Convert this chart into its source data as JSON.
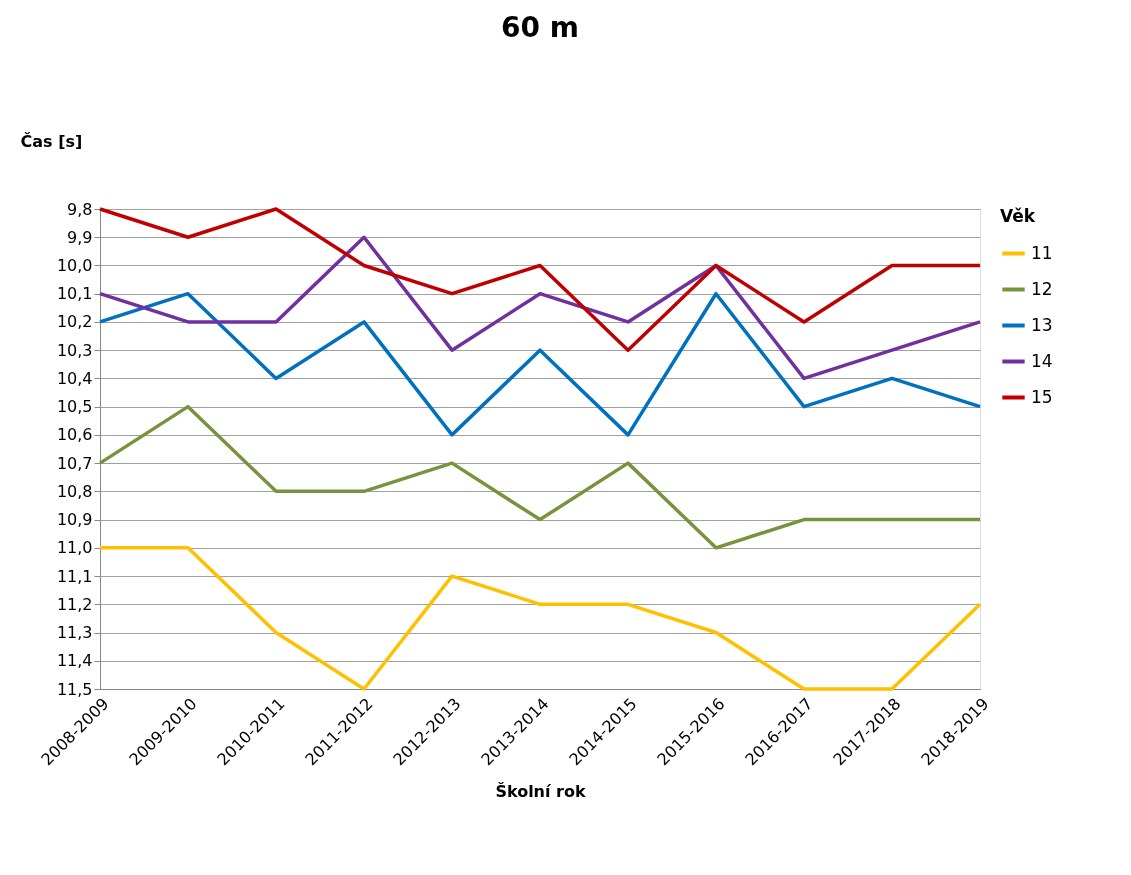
{
  "chart_data": {
    "type": "line",
    "title": "60 m",
    "xlabel": "Školní rok",
    "ylabel": "Čas [s]",
    "legend_title": "Věk",
    "categories": [
      "2008-2009",
      "2009-2010",
      "2010-2011",
      "2011-2012",
      "2012-2013",
      "2013-2014",
      "2014-2015",
      "2015-2016",
      "2016-2017",
      "2017-2018",
      "2018-2019"
    ],
    "series": [
      {
        "name": "11",
        "color": "#ffc000",
        "values": [
          11.0,
          11.0,
          11.3,
          11.5,
          11.1,
          11.2,
          11.2,
          11.3,
          11.5,
          11.5,
          11.2
        ]
      },
      {
        "name": "12",
        "color": "#77933c",
        "values": [
          10.7,
          10.5,
          10.8,
          10.8,
          10.7,
          10.9,
          10.7,
          11.0,
          10.9,
          10.9,
          10.9
        ]
      },
      {
        "name": "13",
        "color": "#0070c0",
        "values": [
          10.2,
          10.1,
          10.4,
          10.2,
          10.6,
          10.3,
          10.6,
          10.1,
          10.5,
          10.4,
          10.5
        ]
      },
      {
        "name": "14",
        "color": "#7030a0",
        "values": [
          10.1,
          10.2,
          10.2,
          9.9,
          10.3,
          10.1,
          10.2,
          10.0,
          10.4,
          10.3,
          10.2
        ]
      },
      {
        "name": "15",
        "color": "#c00000",
        "values": [
          9.8,
          9.9,
          9.8,
          10.0,
          10.1,
          10.0,
          10.3,
          10.0,
          10.2,
          10.0,
          10.0
        ]
      }
    ],
    "ylim": [
      11.5,
      9.8
    ],
    "yticks": [
      {
        "value": 9.8,
        "label": "9,8"
      },
      {
        "value": 9.9,
        "label": "9,9"
      },
      {
        "value": 10.0,
        "label": "10,0"
      },
      {
        "value": 10.1,
        "label": "10,1"
      },
      {
        "value": 10.2,
        "label": "10,2"
      },
      {
        "value": 10.3,
        "label": "10,3"
      },
      {
        "value": 10.4,
        "label": "10,4"
      },
      {
        "value": 10.5,
        "label": "10,5"
      },
      {
        "value": 10.6,
        "label": "10,6"
      },
      {
        "value": 10.7,
        "label": "10,7"
      },
      {
        "value": 10.8,
        "label": "10,8"
      },
      {
        "value": 10.9,
        "label": "10,9"
      },
      {
        "value": 11.0,
        "label": "11,0"
      },
      {
        "value": 11.1,
        "label": "11,1"
      },
      {
        "value": 11.2,
        "label": "11,2"
      },
      {
        "value": 11.3,
        "label": "11,3"
      },
      {
        "value": 11.4,
        "label": "11,4"
      },
      {
        "value": 11.5,
        "label": "11,5"
      }
    ],
    "grid": "y",
    "legend": "right",
    "marker": "none",
    "line_style": "solid"
  }
}
